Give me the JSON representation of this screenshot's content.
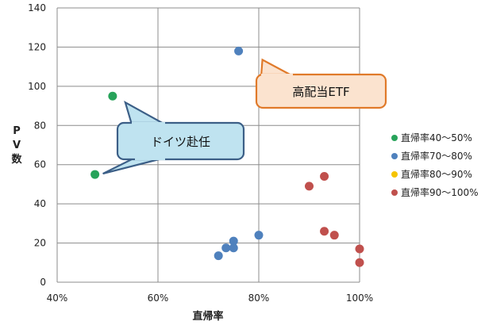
{
  "colors": {
    "grid": "#8c8c8c",
    "plot_border": "#8c8c8c",
    "callout_orange_fill": "#fbe3cf",
    "callout_orange_stroke": "#e07a2a",
    "callout_blue_fill": "#bfe3f0",
    "callout_blue_stroke": "#3c5f87"
  },
  "chart_data": {
    "type": "scatter",
    "title": "",
    "xlabel": "直帰率",
    "ylabel": "P V 数",
    "xlim": [
      0.4,
      1.0
    ],
    "ylim": [
      0,
      140
    ],
    "x_ticks": [
      0.4,
      0.6,
      0.8,
      1.0
    ],
    "x_tick_labels": [
      "40%",
      "60%",
      "80%",
      "100%"
    ],
    "y_ticks": [
      0,
      20,
      40,
      60,
      80,
      100,
      120,
      140
    ],
    "y_tick_labels": [
      "0",
      "20",
      "40",
      "60",
      "80",
      "100",
      "120",
      "140"
    ],
    "grid": true,
    "legend_position": "right",
    "series": [
      {
        "name": "直帰率40～50%",
        "color": "#27a35a",
        "points": [
          [
            0.51,
            95
          ],
          [
            0.475,
            55
          ]
        ]
      },
      {
        "name": "直帰率70～80%",
        "color": "#4f81bd",
        "points": [
          [
            0.76,
            118
          ],
          [
            0.8,
            24
          ],
          [
            0.75,
            21
          ],
          [
            0.75,
            17.5
          ],
          [
            0.735,
            17.5
          ],
          [
            0.72,
            13.5
          ]
        ]
      },
      {
        "name": "直帰率80～90%",
        "color": "#f5c400",
        "points": []
      },
      {
        "name": "直帰率90～100%",
        "color": "#c0504d",
        "points": [
          [
            0.93,
            54
          ],
          [
            0.9,
            49
          ],
          [
            0.93,
            26
          ],
          [
            0.95,
            24
          ],
          [
            1.0,
            17
          ],
          [
            1.0,
            10
          ]
        ]
      }
    ],
    "annotations": [
      {
        "text": "高配当ETF",
        "series": 1,
        "point": 0
      },
      {
        "text": "ドイツ赴任",
        "series": 0,
        "points": [
          0,
          1
        ]
      }
    ]
  }
}
